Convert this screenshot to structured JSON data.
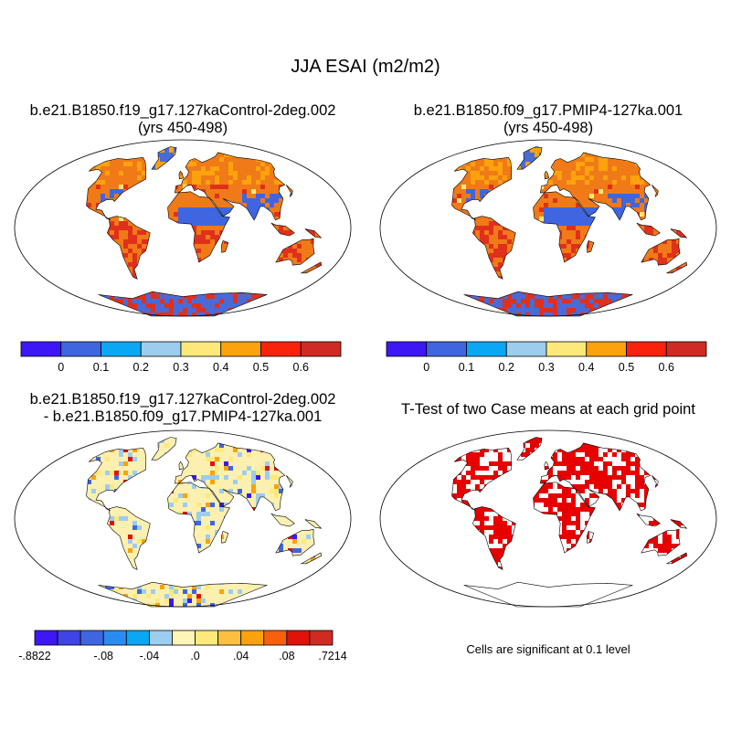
{
  "main_title": "JJA ESAI (m2/m2)",
  "panels": {
    "control": {
      "title_line1": "b.e21.B1850.f19_g17.127kaControl-2deg.002",
      "title_line2": "(yrs 450-498)"
    },
    "pmip": {
      "title_line1": "b.e21.B1850.f09_g17.PMIP4-127ka.001",
      "title_line2": "(yrs 450-498)"
    },
    "difference": {
      "title_line1": "b.e21.B1850.f19_g17.127kaControl-2deg.002",
      "title_line2": "- b.e21.B1850.f09_g17.PMIP4-127ka.001"
    },
    "ttest": {
      "title_line1": "T-Test of two Case means at each grid point",
      "note": "Cells are significant at 0.1 level"
    }
  },
  "colorbars": {
    "absolute": {
      "colors": [
        "#3d17f5",
        "#3f66e0",
        "#0aa7f5",
        "#9ccdef",
        "#fde97a",
        "#fba20d",
        "#f8230a",
        "#d02a22"
      ],
      "labels": [
        "0",
        "0.1",
        "0.2",
        "0.3",
        "0.4",
        "0.5",
        "0.6"
      ]
    },
    "difference": {
      "colors": [
        "#3d17f5",
        "#3f44e6",
        "#3f66e0",
        "#2a8cf0",
        "#0aa7f5",
        "#9ccdef",
        "#fcf5b6",
        "#fde97a",
        "#fcc040",
        "#fba20d",
        "#f8600a",
        "#e0120a",
        "#d02a22"
      ],
      "labels": [
        "-.8822",
        "-.08",
        "-.04",
        ".0",
        ".04",
        ".08",
        ".7214"
      ]
    }
  },
  "colors": {
    "land_warm": "#f07a18",
    "land_hot": "#e0301c",
    "land_orange": "#fba20d",
    "desert_blue": "#3f66e0",
    "ice_blue": "#4a6ad8",
    "diff_base": "#fcf0b0",
    "significant": "#e60000"
  }
}
